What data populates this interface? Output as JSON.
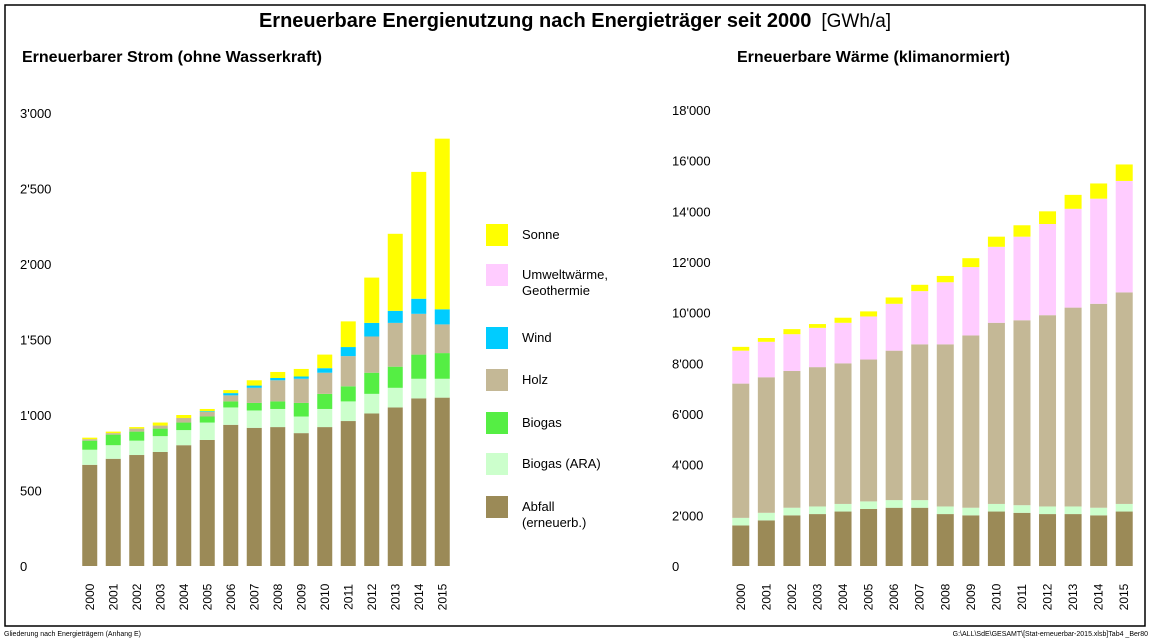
{
  "title": "Erneuerbare Energienutzung nach Energieträger seit 2000",
  "unit": "[GWh/a]",
  "footer_left": "Gliederung nach Energieträgern (Anhang E)",
  "footer_right": "G:\\ALL\\SdE\\GESAMT\\[Stat-erneuerbar-2015.xlsb]Tab4   _Ber80",
  "chart_data": [
    {
      "type": "stacked_bar",
      "title": "Erneuerbarer Strom (ohne Wasserkraft)",
      "categories": [
        "2000",
        "2001",
        "2002",
        "2003",
        "2004",
        "2005",
        "2006",
        "2007",
        "2008",
        "2009",
        "2010",
        "2011",
        "2012",
        "2013",
        "2014",
        "2015"
      ],
      "ylim": [
        0,
        3000
      ],
      "yticks": [
        0,
        500,
        {
          "value": 1000,
          "label": "1'000"
        },
        {
          "value": 1500,
          "label": "1'500"
        },
        {
          "value": 2000,
          "label": "2'000"
        },
        {
          "value": 2500,
          "label": "2'500"
        },
        {
          "value": 3000,
          "label": "3'000"
        }
      ],
      "grid": false,
      "series": [
        {
          "name": "Abfall (erneuerb.)",
          "color": "#9b8a57",
          "values": [
            670,
            710,
            735,
            755,
            800,
            835,
            935,
            915,
            920,
            880,
            920,
            960,
            1010,
            1050,
            1110,
            1115
          ]
        },
        {
          "name": "Biogas (ARA)",
          "color": "#ccffcc",
          "values": [
            100,
            90,
            95,
            105,
            100,
            115,
            115,
            115,
            120,
            110,
            120,
            130,
            130,
            130,
            130,
            125
          ]
        },
        {
          "name": "Biogas",
          "color": "#55ee44",
          "values": [
            60,
            70,
            60,
            50,
            50,
            40,
            40,
            50,
            50,
            90,
            100,
            100,
            140,
            140,
            160,
            170
          ]
        },
        {
          "name": "Holz",
          "color": "#c4b896",
          "values": [
            10,
            10,
            20,
            20,
            30,
            30,
            40,
            100,
            140,
            160,
            140,
            200,
            240,
            290,
            270,
            190
          ]
        },
        {
          "name": "Wind",
          "color": "#00ccff",
          "values": [
            0,
            0,
            0,
            0,
            0,
            5,
            15,
            15,
            15,
            15,
            30,
            60,
            90,
            80,
            100,
            100
          ]
        },
        {
          "name": "Sonne",
          "color": "#ffff00",
          "values": [
            10,
            10,
            10,
            20,
            20,
            15,
            20,
            35,
            40,
            50,
            90,
            170,
            300,
            510,
            840,
            1130
          ]
        }
      ]
    },
    {
      "type": "stacked_bar",
      "title": "Erneuerbare Wärme (klimanormiert)",
      "categories": [
        "2000",
        "2001",
        "2002",
        "2003",
        "2004",
        "2005",
        "2006",
        "2007",
        "2008",
        "2009",
        "2010",
        "2011",
        "2012",
        "2013",
        "2014",
        "2015"
      ],
      "ylim": [
        0,
        18000
      ],
      "yticks": [
        0,
        {
          "value": 2000,
          "label": "2'000"
        },
        {
          "value": 4000,
          "label": "4'000"
        },
        {
          "value": 6000,
          "label": "6'000"
        },
        {
          "value": 8000,
          "label": "8'000"
        },
        {
          "value": 10000,
          "label": "10'000"
        },
        {
          "value": 12000,
          "label": "12'000"
        },
        {
          "value": 14000,
          "label": "14'000"
        },
        {
          "value": 16000,
          "label": "16'000"
        },
        {
          "value": 18000,
          "label": "18'000"
        }
      ],
      "grid": false,
      "series": [
        {
          "name": "Abfall (erneuerb.)",
          "color": "#9b8a57",
          "values": [
            1600,
            1800,
            2000,
            2050,
            2150,
            2250,
            2300,
            2300,
            2050,
            2000,
            2150,
            2100,
            2050,
            2050,
            2000,
            2150
          ]
        },
        {
          "name": "Biogas (ARA)",
          "color": "#ccffcc",
          "values": [
            300,
            300,
            300,
            300,
            300,
            300,
            300,
            300,
            300,
            300,
            300,
            300,
            300,
            300,
            300,
            300
          ]
        },
        {
          "name": "Holz",
          "color": "#c4b896",
          "values": [
            5300,
            5350,
            5400,
            5500,
            5550,
            5600,
            5900,
            6150,
            6400,
            6800,
            7150,
            7300,
            7550,
            7850,
            8050,
            8350
          ]
        },
        {
          "name": "Umweltwärme, Geothermie",
          "color": "#ffccff",
          "values": [
            1300,
            1400,
            1450,
            1550,
            1600,
            1700,
            1850,
            2100,
            2450,
            2700,
            3000,
            3300,
            3600,
            3900,
            4150,
            4400
          ]
        },
        {
          "name": "Sonne",
          "color": "#ffff00",
          "values": [
            150,
            150,
            200,
            150,
            200,
            200,
            250,
            250,
            250,
            350,
            400,
            450,
            500,
            550,
            600,
            650
          ]
        }
      ]
    }
  ]
}
